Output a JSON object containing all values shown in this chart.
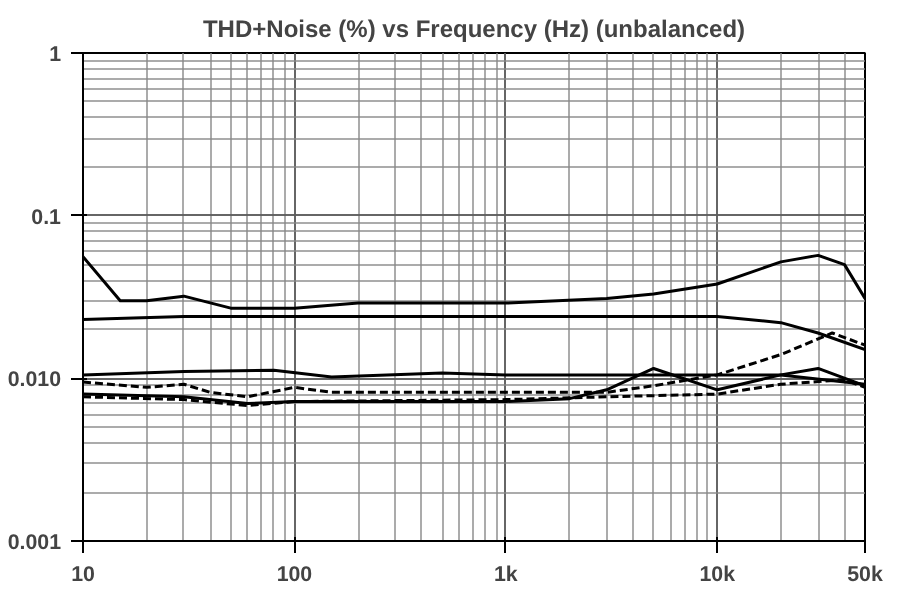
{
  "chart_data": {
    "type": "line",
    "title": "THD+Noise (%) vs Frequency (Hz) (unbalanced)",
    "log": "xy",
    "grid": true,
    "xlim": [
      10,
      50000
    ],
    "ylim": [
      0.001,
      1
    ],
    "xticks": [
      10,
      100,
      {
        "value": 1000,
        "label": "1k"
      },
      {
        "value": 10000,
        "label": "10k"
      },
      {
        "value": 50000,
        "label": "50k"
      }
    ],
    "yticks": [
      0.001,
      {
        "value": 0.01,
        "label": "0.010"
      },
      0.1,
      1
    ],
    "series": [
      {
        "color": "#000000",
        "line_style": "solid",
        "x": [
          10,
          15,
          20,
          30,
          50,
          100,
          200,
          500,
          1000,
          3000,
          5000,
          10000,
          20000,
          30000,
          40000,
          50000
        ],
        "values": [
          0.056,
          0.03,
          0.03,
          0.032,
          0.027,
          0.027,
          0.029,
          0.029,
          0.029,
          0.031,
          0.033,
          0.038,
          0.052,
          0.057,
          0.05,
          0.031
        ]
      },
      {
        "color": "#000000",
        "line_style": "solid",
        "x": [
          10,
          30,
          100,
          1000,
          10000,
          20000,
          30000,
          50000
        ],
        "values": [
          0.023,
          0.024,
          0.024,
          0.024,
          0.024,
          0.022,
          0.019,
          0.015
        ]
      },
      {
        "color": "#000000",
        "line_style": "solid",
        "x": [
          10,
          30,
          80,
          150,
          500,
          1000,
          10000,
          20000,
          50000
        ],
        "values": [
          0.0105,
          0.011,
          0.0112,
          0.0102,
          0.0108,
          0.0105,
          0.0105,
          0.0105,
          0.0092
        ]
      },
      {
        "color": "#000000",
        "line_style": "dashed",
        "x": [
          10,
          20,
          30,
          40,
          60,
          100,
          150,
          1000,
          3000,
          5000,
          10000,
          20000,
          35000,
          50000
        ],
        "values": [
          0.0095,
          0.0088,
          0.0092,
          0.0082,
          0.0077,
          0.0088,
          0.0082,
          0.0082,
          0.0082,
          0.009,
          0.0105,
          0.014,
          0.019,
          0.016
        ]
      },
      {
        "color": "#000000",
        "line_style": "solid",
        "x": [
          10,
          30,
          60,
          100,
          1000,
          2000,
          3000,
          5000,
          10000,
          20000,
          30000,
          50000
        ],
        "values": [
          0.008,
          0.0077,
          0.007,
          0.0072,
          0.0072,
          0.0075,
          0.0085,
          0.0115,
          0.0085,
          0.0105,
          0.0115,
          0.009
        ]
      },
      {
        "color": "#000000",
        "line_style": "dashed",
        "x": [
          10,
          30,
          60,
          100,
          1000,
          3000,
          10000,
          20000,
          40000,
          50000
        ],
        "values": [
          0.0077,
          0.0074,
          0.0068,
          0.0072,
          0.0074,
          0.0077,
          0.008,
          0.0092,
          0.0098,
          0.0088
        ]
      }
    ]
  }
}
